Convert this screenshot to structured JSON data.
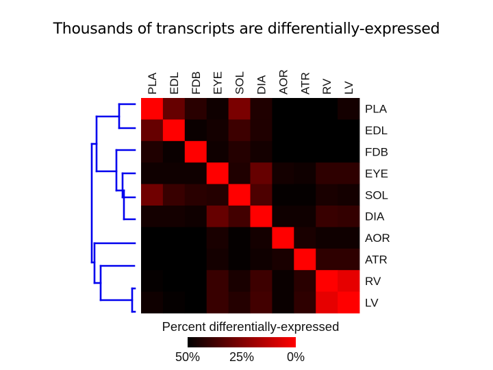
{
  "slide": {
    "title": "Thousands of transcripts are differentially-expressed"
  },
  "chart_data": {
    "type": "heatmap",
    "title": "Thousands of transcripts are differentially-expressed",
    "row_labels": [
      "PLA",
      "EDL",
      "FDB",
      "EYE",
      "SOL",
      "DIA",
      "AOR",
      "ATR",
      "RV",
      "LV"
    ],
    "col_labels": [
      "PLA",
      "EDL",
      "FDB",
      "EYE",
      "SOL",
      "DIA",
      "AOR",
      "ATR",
      "RV",
      "LV"
    ],
    "values_unit": "percent differentially-expressed",
    "values": [
      [
        0,
        30,
        42,
        47,
        26,
        44,
        50,
        50,
        50,
        46
      ],
      [
        30,
        0,
        48,
        46,
        38,
        44,
        50,
        50,
        50,
        50
      ],
      [
        44,
        48,
        0,
        47,
        43,
        46,
        50,
        50,
        50,
        50
      ],
      [
        47,
        47,
        47,
        0,
        44,
        30,
        46,
        47,
        41,
        41
      ],
      [
        28,
        39,
        42,
        43,
        0,
        35,
        49,
        49,
        45,
        46
      ],
      [
        46,
        46,
        47,
        30,
        37,
        0,
        47,
        47,
        39,
        40
      ],
      [
        50,
        50,
        50,
        45,
        49,
        46,
        0,
        45,
        47,
        47
      ],
      [
        50,
        50,
        50,
        46,
        49,
        47,
        45,
        0,
        41,
        41
      ],
      [
        49,
        50,
        50,
        39,
        45,
        38,
        48,
        42,
        0,
        5
      ],
      [
        47,
        49,
        50,
        39,
        43,
        37,
        48,
        41,
        5,
        0
      ]
    ],
    "colorbar": {
      "label": "Percent differentially-expressed",
      "range": [
        50,
        0
      ],
      "low_color": "#000000",
      "high_color": "#ff0000",
      "ticks": [
        {
          "value": 50,
          "label": "50%"
        },
        {
          "value": 25,
          "label": "25%"
        },
        {
          "value": 0,
          "label": "0%"
        }
      ]
    },
    "dendrogram": {
      "side": "left",
      "color": "#0000ee",
      "structure": "((PLA,EDL),(FDB,((EYE,SOL),DIA))),(AOR,(ATR,(RV,LV)))"
    }
  }
}
